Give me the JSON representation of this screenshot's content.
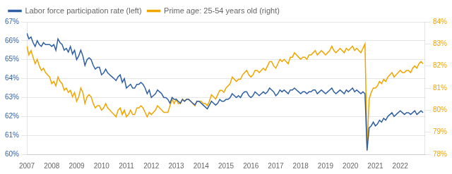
{
  "chart_data": {
    "type": "line",
    "x": [
      2007,
      2007.0833333333,
      2007.1666666667,
      2007.25,
      2007.3333333333,
      2007.4166666667,
      2007.5,
      2007.5833333333,
      2007.6666666667,
      2007.75,
      2007.8333333333,
      2007.9166666667,
      2008,
      2008.0833333333,
      2008.1666666667,
      2008.25,
      2008.3333333333,
      2008.4166666667,
      2008.5,
      2008.5833333333,
      2008.6666666667,
      2008.75,
      2008.8333333333,
      2008.9166666667,
      2009,
      2009.0833333333,
      2009.1666666667,
      2009.25,
      2009.3333333333,
      2009.4166666667,
      2009.5,
      2009.5833333333,
      2009.6666666667,
      2009.75,
      2009.8333333333,
      2009.9166666667,
      2010,
      2010.0833333333,
      2010.1666666667,
      2010.25,
      2010.3333333333,
      2010.4166666667,
      2010.5,
      2010.5833333333,
      2010.6666666667,
      2010.75,
      2010.8333333333,
      2010.9166666667,
      2011,
      2011.0833333333,
      2011.1666666667,
      2011.25,
      2011.3333333333,
      2011.4166666667,
      2011.5,
      2011.5833333333,
      2011.6666666667,
      2011.75,
      2011.8333333333,
      2011.9166666667,
      2012,
      2012.0833333333,
      2012.1666666667,
      2012.25,
      2012.3333333333,
      2012.4166666667,
      2012.5,
      2012.5833333333,
      2012.6666666667,
      2012.75,
      2012.8333333333,
      2012.9166666667,
      2013,
      2013.0833333333,
      2013.1666666667,
      2013.25,
      2013.3333333333,
      2013.4166666667,
      2013.5,
      2013.5833333333,
      2013.6666666667,
      2013.75,
      2013.8333333333,
      2013.9166666667,
      2014,
      2014.0833333333,
      2014.1666666667,
      2014.25,
      2014.3333333333,
      2014.4166666667,
      2014.5,
      2014.5833333333,
      2014.6666666667,
      2014.75,
      2014.8333333333,
      2014.9166666667,
      2015,
      2015.0833333333,
      2015.1666666667,
      2015.25,
      2015.3333333333,
      2015.4166666667,
      2015.5,
      2015.5833333333,
      2015.6666666667,
      2015.75,
      2015.8333333333,
      2015.9166666667,
      2016,
      2016.0833333333,
      2016.1666666667,
      2016.25,
      2016.3333333333,
      2016.4166666667,
      2016.5,
      2016.5833333333,
      2016.6666666667,
      2016.75,
      2016.8333333333,
      2016.9166666667,
      2017,
      2017.0833333333,
      2017.1666666667,
      2017.25,
      2017.3333333333,
      2017.4166666667,
      2017.5,
      2017.5833333333,
      2017.6666666667,
      2017.75,
      2017.8333333333,
      2017.9166666667,
      2018,
      2018.0833333333,
      2018.1666666667,
      2018.25,
      2018.3333333333,
      2018.4166666667,
      2018.5,
      2018.5833333333,
      2018.6666666667,
      2018.75,
      2018.8333333333,
      2018.9166666667,
      2019,
      2019.0833333333,
      2019.1666666667,
      2019.25,
      2019.3333333333,
      2019.4166666667,
      2019.5,
      2019.5833333333,
      2019.6666666667,
      2019.75,
      2019.8333333333,
      2019.9166666667,
      2020,
      2020.0833333333,
      2020.1666666667,
      2020.25,
      2020.3333333333,
      2020.4166666667,
      2020.5,
      2020.5833333333,
      2020.6666666667,
      2020.75,
      2020.8333333333,
      2020.9166666667,
      2021,
      2021.0833333333,
      2021.1666666667,
      2021.25,
      2021.3333333333,
      2021.4166666667,
      2021.5,
      2021.5833333333,
      2021.6666666667,
      2021.75,
      2021.8333333333,
      2021.9166666667,
      2022,
      2022.0833333333,
      2022.1666666667,
      2022.25,
      2022.3333333333,
      2022.4166666667,
      2022.5,
      2022.5833333333,
      2022.6666666667,
      2022.75,
      2022.8333333333,
      2022.9166666667
    ],
    "series": [
      {
        "name": "Labor force participation rate (left)",
        "color": "#2e5fa3",
        "values": [
          66.4,
          66.1,
          66.2,
          65.9,
          65.7,
          66.0,
          65.8,
          65.7,
          65.9,
          65.8,
          65.8,
          65.8,
          65.7,
          65.8,
          65.5,
          66.1,
          65.9,
          65.8,
          65.5,
          65.6,
          65.4,
          65.7,
          65.3,
          65.5,
          65.0,
          65.2,
          65.5,
          65.2,
          64.7,
          65.0,
          65.1,
          65.0,
          64.7,
          64.5,
          64.6,
          64.6,
          64.2,
          64.3,
          64.5,
          64.3,
          64.2,
          64.1,
          64.0,
          63.9,
          64.1,
          64.2,
          63.8,
          64.0,
          63.5,
          63.6,
          63.7,
          63.5,
          63.5,
          63.7,
          63.7,
          63.8,
          63.7,
          63.5,
          63.2,
          63.4,
          63.0,
          63.1,
          63.2,
          63.4,
          63.3,
          63.2,
          63.0,
          63.0,
          62.9,
          62.7,
          63.0,
          62.9,
          62.9,
          62.8,
          62.7,
          62.9,
          62.8,
          62.9,
          62.9,
          62.8,
          62.7,
          62.6,
          62.8,
          62.8,
          62.7,
          62.6,
          62.5,
          62.4,
          62.6,
          62.8,
          62.7,
          62.6,
          62.7,
          62.9,
          62.8,
          62.8,
          62.9,
          62.9,
          63.0,
          63.2,
          63.1,
          63.0,
          63.1,
          63.0,
          63.2,
          63.3,
          63.3,
          63.1,
          63.0,
          63.1,
          63.3,
          63.2,
          63.1,
          63.2,
          63.3,
          63.2,
          63.3,
          63.5,
          63.4,
          63.3,
          63.1,
          63.2,
          63.4,
          63.3,
          63.4,
          63.3,
          63.2,
          63.4,
          63.4,
          63.5,
          63.4,
          63.3,
          63.2,
          63.3,
          63.3,
          63.2,
          63.3,
          63.3,
          63.4,
          63.4,
          63.2,
          63.3,
          63.4,
          63.3,
          63.2,
          63.3,
          63.4,
          63.5,
          63.3,
          63.2,
          63.3,
          63.4,
          63.3,
          63.2,
          63.4,
          63.3,
          63.4,
          63.5,
          63.3,
          63.4,
          63.3,
          63.2,
          63.3,
          63.2,
          60.2,
          61.4,
          61.5,
          61.7,
          61.5,
          61.6,
          61.8,
          61.7,
          61.9,
          61.8,
          62.0,
          62.1,
          62.2,
          62.0,
          62.1,
          62.2,
          62.3,
          62.2,
          62.1,
          62.2,
          62.2,
          62.1,
          62.2,
          62.3,
          62.1,
          62.2,
          62.3,
          62.2
        ]
      },
      {
        "name": "Prime age: 25-54 years old (right)",
        "color": "#f0a500",
        "axis": "y2",
        "values": [
          82.9,
          82.5,
          82.7,
          82.4,
          82.1,
          82.3,
          82.0,
          81.8,
          81.9,
          81.7,
          81.6,
          81.5,
          81.2,
          81.3,
          81.1,
          81.5,
          81.3,
          81.2,
          80.9,
          81.0,
          80.8,
          80.9,
          80.6,
          80.8,
          80.4,
          80.6,
          81.0,
          80.8,
          80.3,
          80.6,
          80.7,
          80.6,
          80.3,
          80.1,
          80.2,
          80.2,
          80.0,
          80.1,
          80.3,
          80.1,
          80.0,
          79.9,
          79.8,
          79.7,
          80.0,
          80.1,
          79.8,
          80.0,
          79.7,
          79.8,
          80.0,
          79.8,
          79.8,
          80.1,
          80.1,
          80.2,
          80.1,
          79.9,
          79.7,
          79.9,
          79.8,
          79.9,
          80.0,
          80.2,
          80.1,
          80.0,
          79.9,
          79.9,
          79.9,
          80.2,
          80.5,
          80.3,
          80.5,
          80.3,
          80.3,
          80.5,
          80.4,
          80.5,
          80.5,
          80.4,
          80.3,
          80.2,
          80.4,
          80.4,
          80.4,
          80.3,
          80.3,
          80.2,
          80.4,
          80.7,
          80.6,
          80.5,
          80.7,
          80.9,
          80.9,
          80.8,
          81.0,
          81.1,
          81.2,
          81.5,
          81.4,
          81.3,
          81.4,
          81.4,
          81.6,
          81.7,
          81.8,
          81.6,
          81.5,
          81.6,
          81.8,
          81.8,
          81.7,
          81.8,
          81.9,
          81.8,
          82.0,
          82.2,
          82.2,
          82.0,
          81.9,
          82.1,
          82.3,
          82.2,
          82.3,
          82.2,
          82.1,
          82.4,
          82.4,
          82.6,
          82.5,
          82.4,
          82.3,
          82.4,
          82.4,
          82.3,
          82.5,
          82.5,
          82.6,
          82.7,
          82.5,
          82.6,
          82.7,
          82.6,
          82.5,
          82.6,
          82.7,
          82.9,
          82.7,
          82.6,
          82.7,
          82.8,
          82.7,
          82.6,
          82.8,
          82.7,
          82.8,
          82.9,
          82.7,
          82.8,
          82.7,
          82.6,
          82.8,
          83.0,
          78.3,
          80.5,
          80.8,
          81.0,
          81.0,
          81.1,
          81.3,
          81.2,
          81.4,
          81.3,
          81.5,
          81.6,
          81.7,
          81.5,
          81.6,
          81.7,
          81.8,
          81.7,
          81.7,
          81.8,
          81.8,
          81.7,
          81.9,
          82.0,
          81.9,
          82.1,
          82.2,
          82.1
        ]
      }
    ],
    "xlim": [
      2007,
      2023
    ],
    "xticks": [
      2007,
      2008,
      2009,
      2010,
      2011,
      2012,
      2013,
      2014,
      2015,
      2016,
      2017,
      2018,
      2019,
      2020,
      2021,
      2022
    ],
    "ylim": [
      60,
      67
    ],
    "yticks": [
      {
        "value": 60,
        "label": "60%"
      },
      {
        "value": 61,
        "label": "61%"
      },
      {
        "value": 62,
        "label": "62%"
      },
      {
        "value": 63,
        "label": "63%"
      },
      {
        "value": 64,
        "label": "64%"
      },
      {
        "value": 65,
        "label": "65%"
      },
      {
        "value": 66,
        "label": "66%"
      },
      {
        "value": 67,
        "label": "67%"
      }
    ],
    "y2lim": [
      78,
      84
    ],
    "y2ticks": [
      {
        "value": 78,
        "label": "78%"
      },
      {
        "value": 79,
        "label": "79%"
      },
      {
        "value": 80,
        "label": "80%"
      },
      {
        "value": 81,
        "label": "81%"
      },
      {
        "value": 82,
        "label": "82%"
      },
      {
        "value": 83,
        "label": "83%"
      },
      {
        "value": 84,
        "label": "84%"
      }
    ],
    "grid": "y",
    "legend": "upper left"
  }
}
